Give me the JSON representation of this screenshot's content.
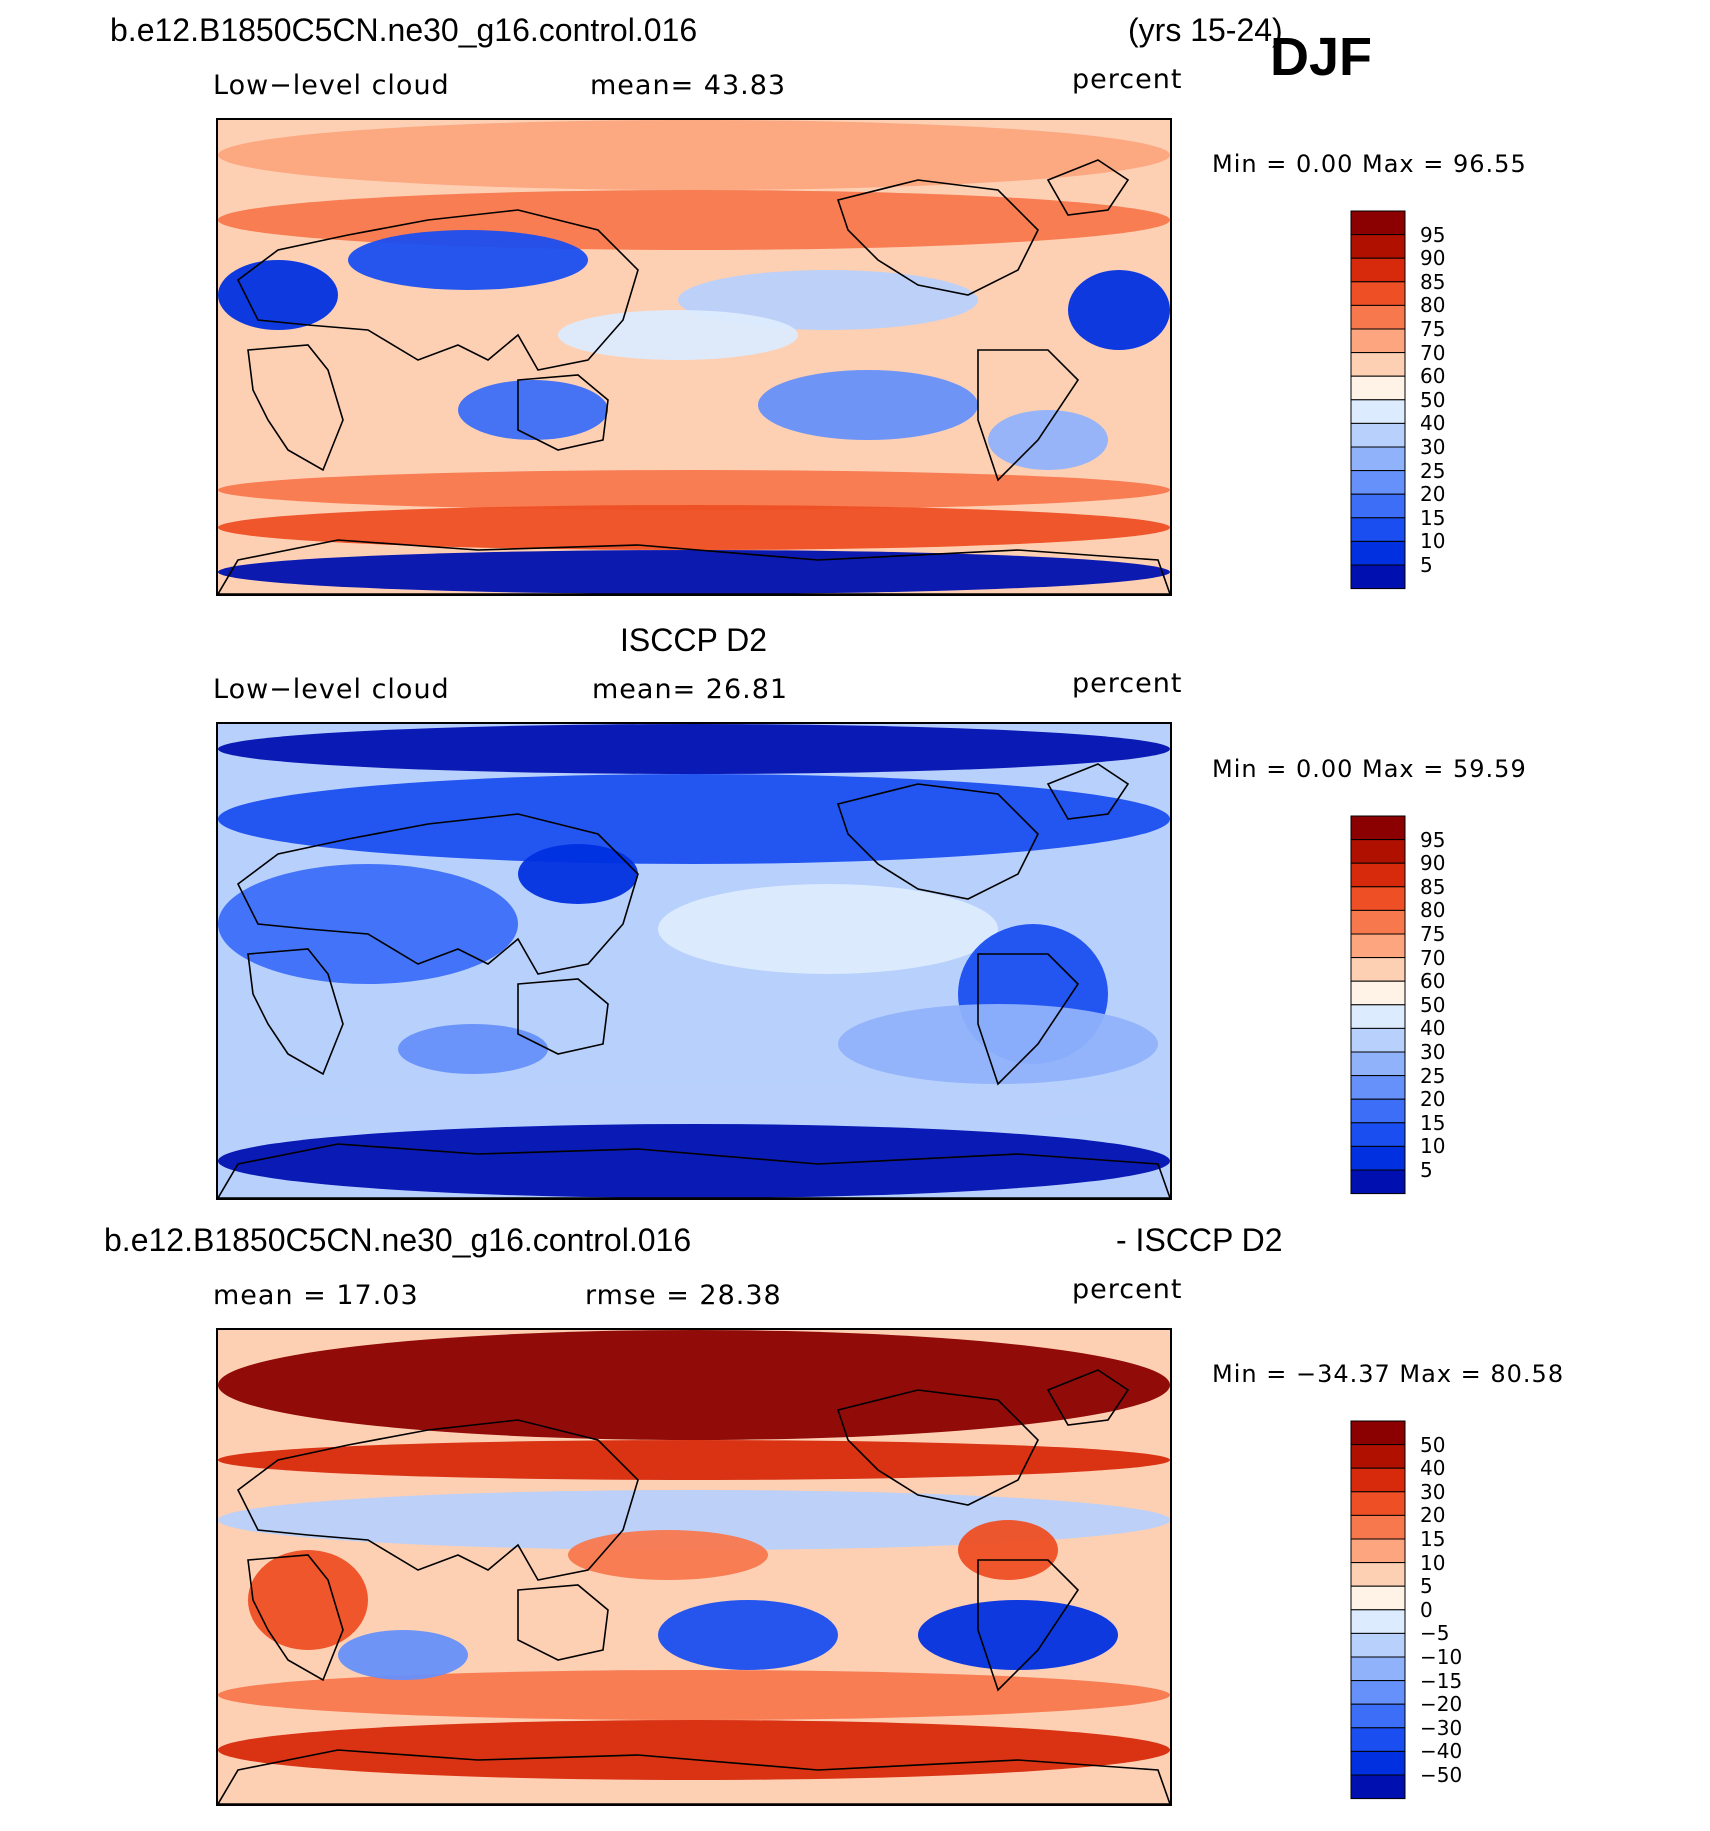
{
  "header": {
    "case_title": "b.e12.B1850C5CN.ne30_g16.control.016",
    "years": "(yrs 15-24)",
    "season": "DJF"
  },
  "panels": [
    {
      "title": "",
      "left_label": "Low−level cloud",
      "mid_label": "mean=   43.83",
      "right_label": "percent",
      "min_max": "Min =     0.00 Max =   96.55",
      "legend_labels": [
        "95",
        "90",
        "85",
        "80",
        "75",
        "70",
        "60",
        "50",
        "40",
        "30",
        "25",
        "20",
        "15",
        "10",
        "5"
      ]
    },
    {
      "title": "ISCCP D2",
      "left_label": "Low−level cloud",
      "mid_label": "mean=   26.81",
      "right_label": "percent",
      "min_max": "Min =     0.00 Max =   59.59",
      "legend_labels": [
        "95",
        "90",
        "85",
        "80",
        "75",
        "70",
        "60",
        "50",
        "40",
        "30",
        "25",
        "20",
        "15",
        "10",
        "5"
      ]
    },
    {
      "title_left": "b.e12.B1850C5CN.ne30_g16.control.016",
      "title_right": "- ISCCP D2",
      "left_label": "mean =   17.03",
      "mid_label": "rmse =   28.38",
      "right_label": "percent",
      "min_max": "Min = −34.37 Max =   80.58",
      "legend_labels": [
        "50",
        "40",
        "30",
        "20",
        "15",
        "10",
        "5",
        "0",
        "−5",
        "−10",
        "−15",
        "−20",
        "−30",
        "−40",
        "−50"
      ]
    }
  ],
  "colors": {
    "palette": [
      "#00007f",
      "#0010b0",
      "#0030e0",
      "#1a4ef0",
      "#3c6ef8",
      "#6690fa",
      "#90b2fb",
      "#b8d0fc",
      "#dcebfd",
      "#fff3e8",
      "#fdd0b4",
      "#fca57e",
      "#f8784e",
      "#ee4f24",
      "#d72a0c",
      "#b01000",
      "#8b0000"
    ]
  },
  "chart_data": [
    {
      "type": "heatmap",
      "title": "b.e12.B1850C5CN.ne30_g16.control.016 (yrs 15-24) DJF",
      "variable": "Low-level cloud",
      "units": "percent",
      "mean": 43.83,
      "min": 0.0,
      "max": 96.55,
      "contour_levels": [
        5,
        10,
        15,
        20,
        25,
        30,
        40,
        50,
        60,
        70,
        75,
        80,
        85,
        90,
        95
      ]
    },
    {
      "type": "heatmap",
      "title": "ISCCP D2",
      "variable": "Low-level cloud",
      "units": "percent",
      "mean": 26.81,
      "min": 0.0,
      "max": 59.59,
      "contour_levels": [
        5,
        10,
        15,
        20,
        25,
        30,
        40,
        50,
        60,
        70,
        75,
        80,
        85,
        90,
        95
      ]
    },
    {
      "type": "heatmap",
      "title": "b.e12.B1850C5CN.ne30_g16.control.016 - ISCCP D2",
      "units": "percent",
      "mean": 17.03,
      "rmse": 28.38,
      "min": -34.37,
      "max": 80.58,
      "contour_levels": [
        -50,
        -40,
        -30,
        -20,
        -15,
        -10,
        -5,
        0,
        5,
        10,
        15,
        20,
        30,
        40,
        50
      ]
    }
  ]
}
